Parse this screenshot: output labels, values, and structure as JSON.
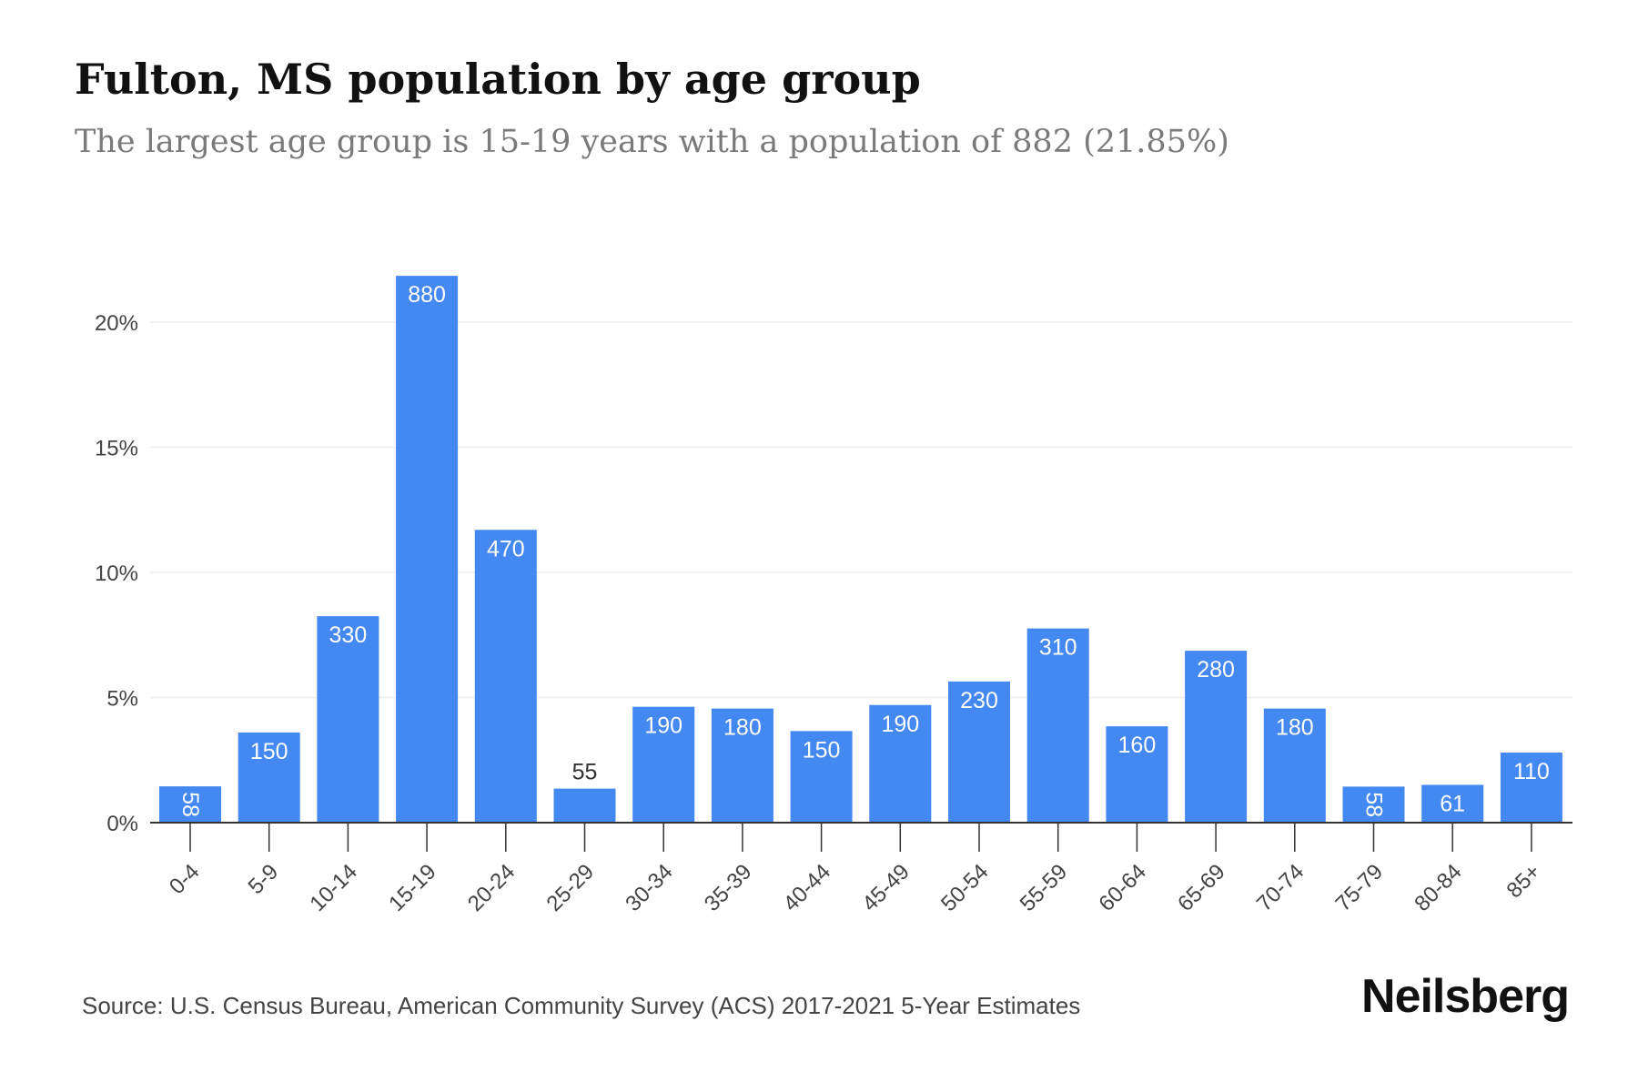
{
  "title": "Fulton, MS population by age group",
  "subtitle": "The largest age group is 15-19 years with a population of 882 (21.85%)",
  "source": "Source: U.S. Census Bureau, American Community Survey (ACS) 2017-2021 5-Year Estimates",
  "brand": "Neilsberg",
  "colors": {
    "bar": "#4488f2",
    "bar_label_inside": "#ffffff",
    "bar_label_outside": "#333333",
    "grid": "#eeeeee",
    "axis": "#333333",
    "tick_text": "#444444"
  },
  "chart_data": {
    "type": "bar",
    "categories": [
      "0-4",
      "5-9",
      "10-14",
      "15-19",
      "20-24",
      "25-29",
      "30-34",
      "35-39",
      "40-44",
      "45-49",
      "50-54",
      "55-59",
      "60-64",
      "65-69",
      "70-74",
      "75-79",
      "80-84",
      "85+"
    ],
    "values": [
      1.45,
      3.6,
      8.25,
      21.85,
      11.7,
      1.36,
      4.63,
      4.56,
      3.66,
      4.7,
      5.64,
      7.76,
      3.85,
      6.87,
      4.56,
      1.44,
      1.51,
      2.8
    ],
    "data_labels": [
      "58",
      "150",
      "330",
      "880",
      "470",
      "55",
      "190",
      "180",
      "150",
      "190",
      "230",
      "310",
      "160",
      "280",
      "180",
      "58",
      "61",
      "110"
    ],
    "label_rotated": [
      true,
      false,
      false,
      false,
      false,
      false,
      false,
      false,
      false,
      false,
      false,
      false,
      false,
      false,
      false,
      true,
      false,
      false
    ],
    "y_ticks": [
      0,
      5,
      10,
      15,
      20
    ],
    "y_tick_labels": [
      "0%",
      "5%",
      "10%",
      "15%",
      "20%"
    ],
    "ylim": [
      0,
      22
    ],
    "xlabel": "",
    "ylabel": "",
    "grid": true,
    "legend": "none"
  }
}
